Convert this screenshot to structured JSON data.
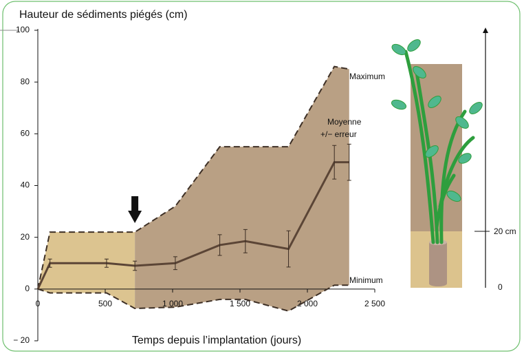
{
  "chart_data": {
    "type": "line",
    "title": "Hauteur de sédiments piégés (cm)",
    "x_label": "Temps depuis l’implantation (jours)",
    "x": [
      0,
      90,
      510,
      720,
      1020,
      1350,
      1540,
      1860,
      2200,
      2310
    ],
    "series": [
      {
        "name": "Maximum",
        "color": "#3d2f25",
        "dashed": true,
        "values": [
          0,
          22,
          22,
          22,
          32,
          55,
          55,
          55,
          86,
          85
        ]
      },
      {
        "name": "Moyenne",
        "error_label": "+/− erreur",
        "color": "#5b4536",
        "dashed": false,
        "values": [
          0,
          10,
          10,
          9,
          10,
          17,
          18.5,
          15.5,
          49,
          49
        ],
        "errors": [
          null,
          1.6,
          1.6,
          1.8,
          2.5,
          4,
          4.5,
          7,
          6.5,
          7
        ]
      },
      {
        "name": "Minimum",
        "color": "#3d2f25",
        "dashed": true,
        "values": [
          0,
          -1.5,
          -1.5,
          -7.5,
          -7,
          -4,
          -4,
          -8.5,
          1.5,
          1.5
        ]
      }
    ],
    "envelope_colors": [
      "#dcc490",
      "#b9a084"
    ],
    "marker": {
      "x": 720
    },
    "xlim": [
      0,
      2500
    ],
    "xticks": [
      0,
      500,
      {
        "value": 1000,
        "label": "1 000"
      },
      {
        "value": 1500,
        "label": "1 500"
      },
      {
        "value": 2000,
        "label": "2 000"
      },
      {
        "value": 2500,
        "label": "2 500"
      }
    ],
    "ylim": [
      -20,
      100
    ],
    "yticks": [
      {
        "value": -20,
        "label": "− 20"
      },
      0,
      20,
      40,
      60,
      80,
      100
    ]
  },
  "illustration": {
    "scale_labels": [
      "20 cm",
      "0"
    ]
  }
}
